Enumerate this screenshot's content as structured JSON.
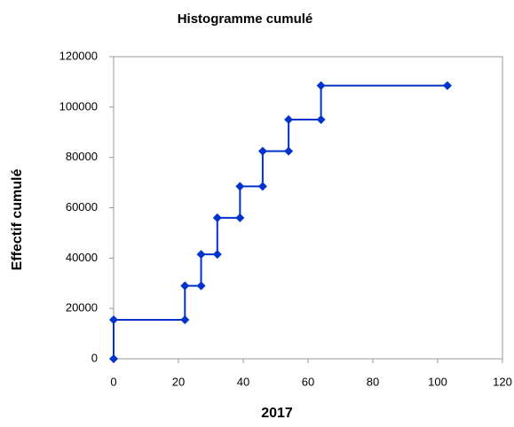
{
  "chart_data": {
    "type": "line",
    "title": "Histogramme cumulé",
    "xlabel": "2017",
    "ylabel": "Effectif cumulé",
    "x": [
      0,
      0,
      22,
      22,
      27,
      27,
      32,
      32,
      39,
      39,
      46,
      46,
      54,
      54,
      64,
      64,
      103
    ],
    "series": [
      {
        "name": "Effectif cumulé",
        "color": "#0033cc",
        "values": [
          0,
          15500,
          15500,
          29000,
          29000,
          41500,
          41500,
          56000,
          56000,
          68500,
          68500,
          82500,
          82500,
          95000,
          95000,
          108500,
          108500
        ]
      }
    ],
    "xlim": [
      0,
      120
    ],
    "xticks": [
      0,
      20,
      40,
      60,
      80,
      100,
      120
    ],
    "ylim": [
      0,
      120000
    ],
    "yticks": [
      0,
      20000,
      40000,
      60000,
      80000,
      100000,
      120000
    ],
    "grid": false
  }
}
